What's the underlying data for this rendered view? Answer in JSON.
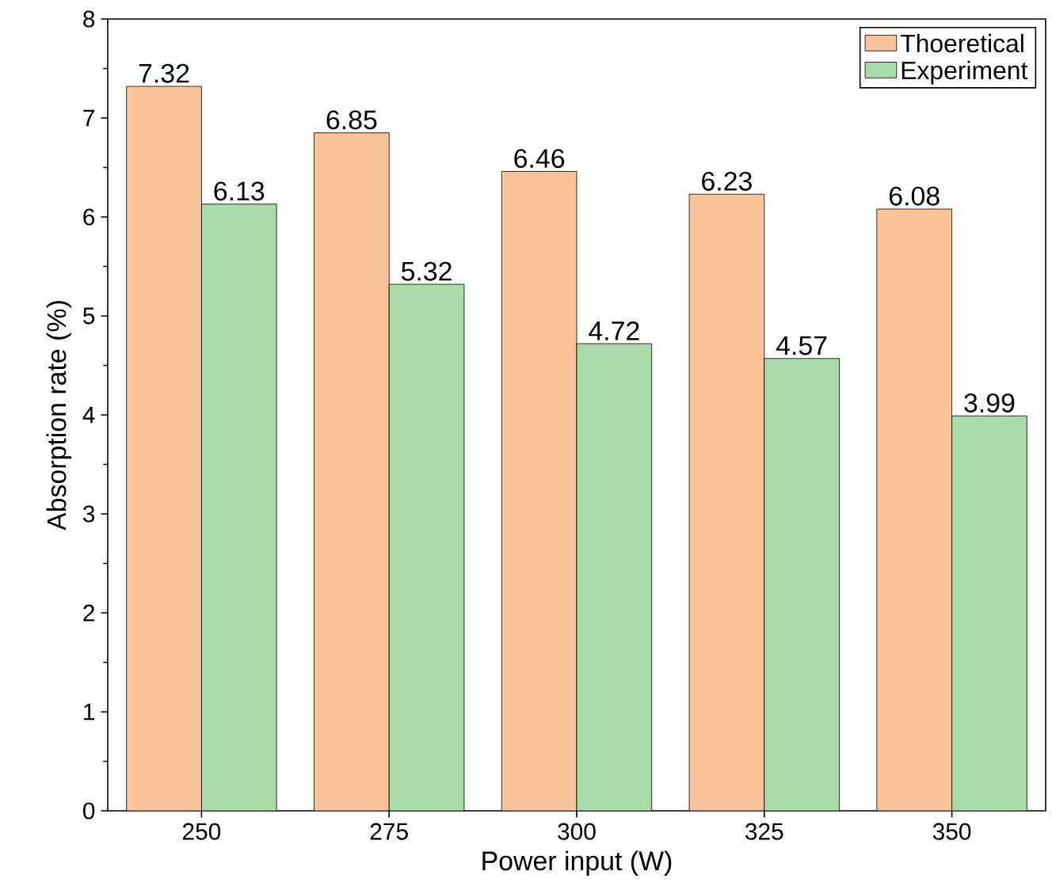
{
  "chart_data": {
    "type": "bar",
    "xlabel": "Power input (W)",
    "ylabel": "Absorption rate (%)",
    "categories": [
      "250",
      "275",
      "300",
      "325",
      "350"
    ],
    "series": [
      {
        "name": "Thoeretical",
        "color": "#f9c49a",
        "values": [
          7.32,
          6.85,
          6.46,
          6.23,
          6.08
        ]
      },
      {
        "name": "Experiment",
        "color": "#a9dba9",
        "values": [
          6.13,
          5.32,
          4.72,
          4.57,
          3.99
        ]
      }
    ],
    "ylim": [
      0,
      8
    ],
    "yticks": [
      0,
      1,
      2,
      3,
      4,
      5,
      6,
      7,
      8
    ],
    "data_labels": true,
    "legend": "top right"
  }
}
